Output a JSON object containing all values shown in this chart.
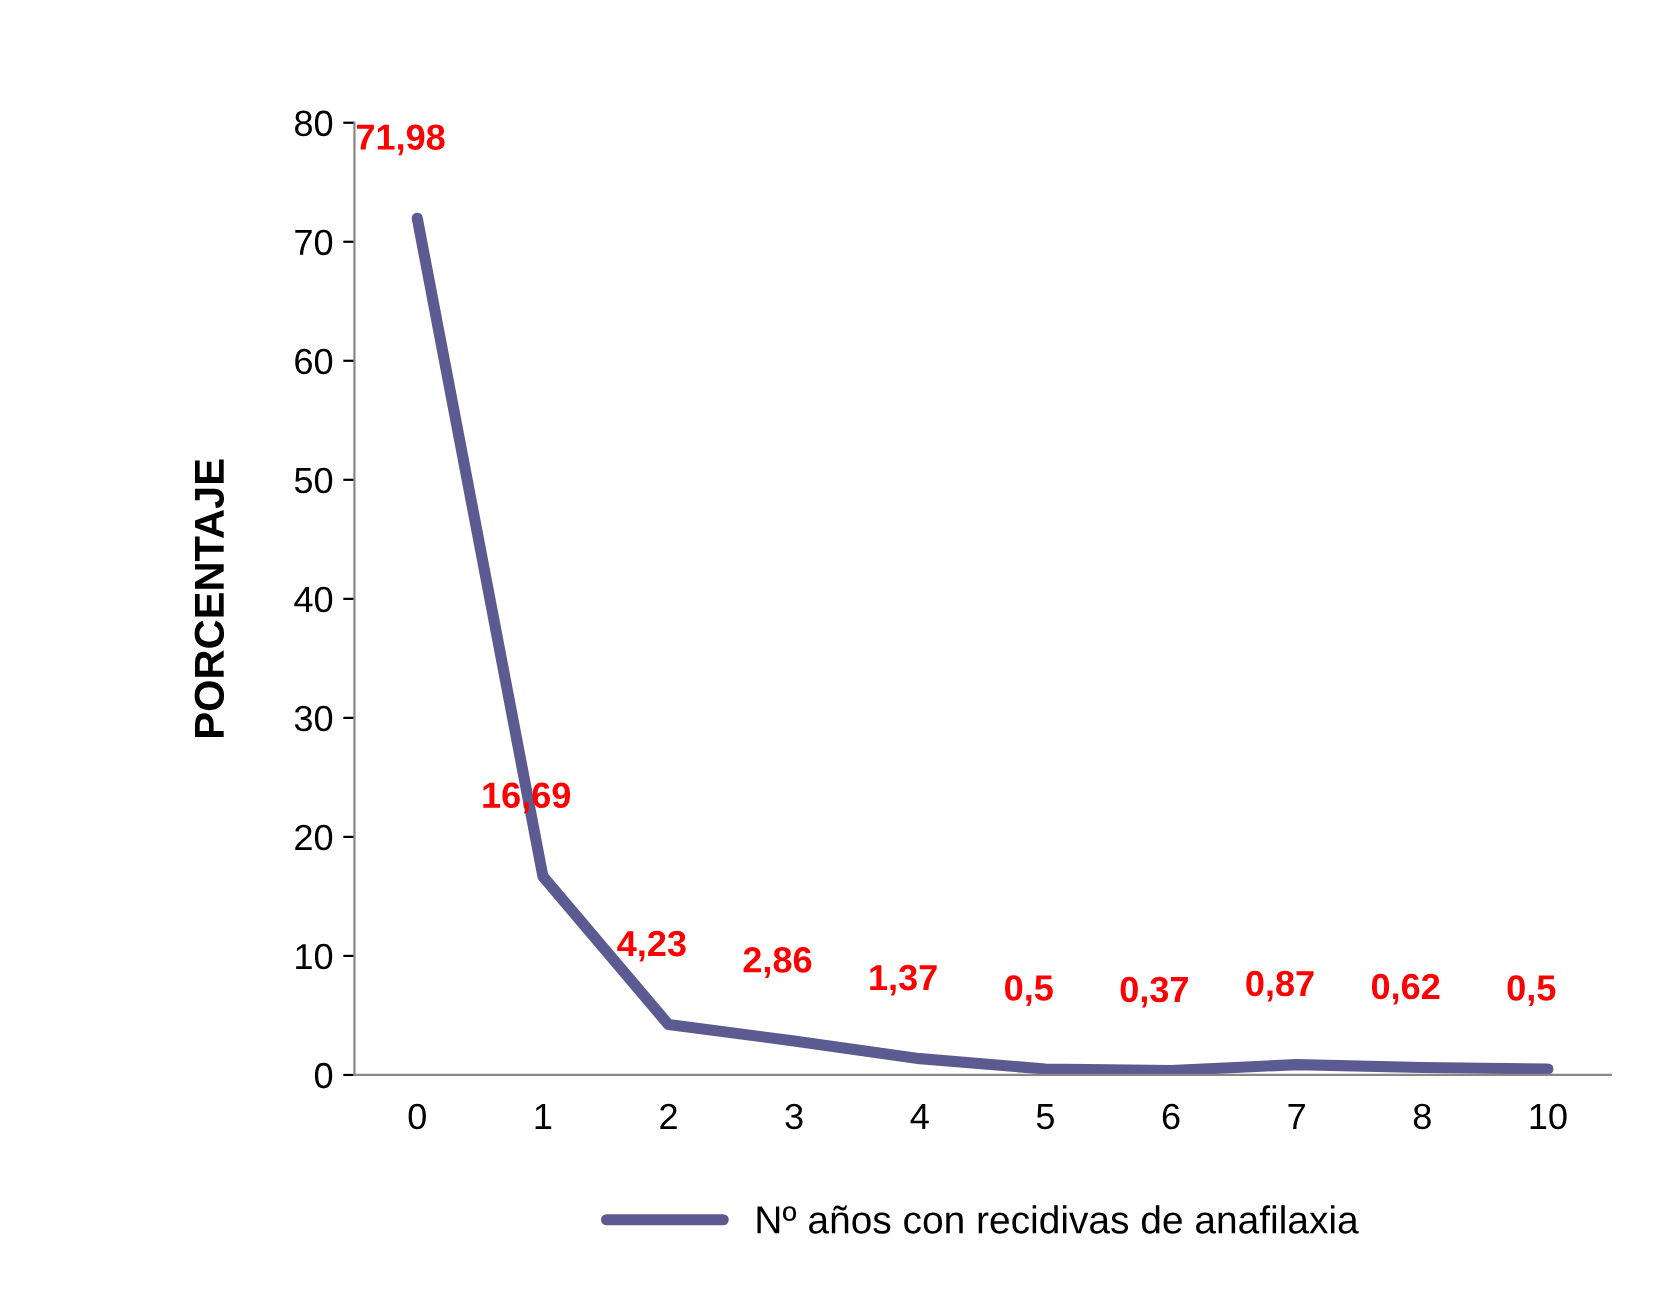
{
  "chart_data": {
    "type": "line",
    "ylabel": "PORCENTAJE",
    "categories": [
      "0",
      "1",
      "2",
      "3",
      "4",
      "5",
      "6",
      "7",
      "8",
      "10"
    ],
    "series": [
      {
        "name": "Nº años con recidivas de anafilaxia",
        "color": "#5b5b91",
        "values": [
          71.98,
          16.69,
          4.23,
          2.86,
          1.37,
          0.5,
          0.37,
          0.87,
          0.62,
          0.5
        ],
        "value_labels": [
          "71,98",
          "16,69",
          "4,23",
          "2,86",
          "1,37",
          "0,5",
          "0,37",
          "0,87",
          "0,62",
          "0,5"
        ]
      }
    ],
    "ylim": [
      0,
      80
    ],
    "yticks": [
      0,
      10,
      20,
      30,
      40,
      50,
      60,
      70,
      80
    ],
    "grid": false,
    "legend": "bottom",
    "marker": "none",
    "line_style": "solid"
  }
}
